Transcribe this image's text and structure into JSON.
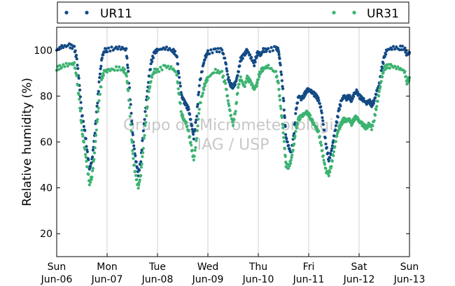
{
  "chart_data": {
    "type": "scatter",
    "ylabel": "Relative humidity (%)",
    "xlim": [
      "2011-06-06 00:00",
      "2011-06-13 00:00"
    ],
    "ylim": [
      10,
      110
    ],
    "yticks": [
      20,
      40,
      60,
      80,
      100
    ],
    "xticks": [
      {
        "day": "Sun",
        "date": "Jun-06"
      },
      {
        "day": "Mon",
        "date": "Jun-07"
      },
      {
        "day": "Tue",
        "date": "Jun-08"
      },
      {
        "day": "Wed",
        "date": "Jun-09"
      },
      {
        "day": "Thu",
        "date": "Jun-10"
      },
      {
        "day": "Fri",
        "date": "Jun-11"
      },
      {
        "day": "Sat",
        "date": "Jun-12"
      },
      {
        "day": "Sun",
        "date": "Jun-13"
      }
    ],
    "grid": "vertical-at-midnight",
    "legend_position": "top",
    "watermark": [
      "Grupo de Micrometeorologia",
      "IAG / USP"
    ],
    "series": [
      {
        "name": "UR11",
        "color": "#134a85",
        "points": [
          [
            0.0,
            100
          ],
          [
            0.1,
            101.5
          ],
          [
            0.25,
            102
          ],
          [
            0.35,
            101
          ],
          [
            0.4,
            96
          ],
          [
            0.45,
            85
          ],
          [
            0.5,
            72
          ],
          [
            0.55,
            66
          ],
          [
            0.6,
            57
          ],
          [
            0.65,
            48
          ],
          [
            0.7,
            52
          ],
          [
            0.75,
            62
          ],
          [
            0.8,
            75
          ],
          [
            0.85,
            88
          ],
          [
            0.9,
            97
          ],
          [
            0.95,
            100
          ],
          [
            1.0,
            100
          ],
          [
            1.15,
            101
          ],
          [
            1.3,
            101
          ],
          [
            1.38,
            100
          ],
          [
            1.42,
            90
          ],
          [
            1.48,
            72
          ],
          [
            1.52,
            60
          ],
          [
            1.57,
            52
          ],
          [
            1.62,
            46
          ],
          [
            1.67,
            52
          ],
          [
            1.72,
            65
          ],
          [
            1.78,
            78
          ],
          [
            1.83,
            88
          ],
          [
            1.88,
            95
          ],
          [
            1.94,
            99
          ],
          [
            2.0,
            100
          ],
          [
            2.15,
            101
          ],
          [
            2.3,
            100
          ],
          [
            2.38,
            98
          ],
          [
            2.42,
            90
          ],
          [
            2.48,
            80
          ],
          [
            2.52,
            78
          ],
          [
            2.57,
            76
          ],
          [
            2.62,
            74
          ],
          [
            2.67,
            68
          ],
          [
            2.72,
            62
          ],
          [
            2.78,
            72
          ],
          [
            2.83,
            85
          ],
          [
            2.9,
            93
          ],
          [
            2.95,
            97
          ],
          [
            3.0,
            99
          ],
          [
            3.15,
            100
          ],
          [
            3.28,
            100
          ],
          [
            3.35,
            95
          ],
          [
            3.4,
            88
          ],
          [
            3.45,
            85
          ],
          [
            3.5,
            84
          ],
          [
            3.55,
            86
          ],
          [
            3.6,
            90
          ],
          [
            3.65,
            96
          ],
          [
            3.72,
            98
          ],
          [
            3.78,
            100
          ],
          [
            3.85,
            97
          ],
          [
            3.92,
            94
          ],
          [
            3.97,
            98
          ],
          [
            4.0,
            99
          ],
          [
            4.05,
            98
          ],
          [
            4.1,
            100
          ],
          [
            4.2,
            100
          ],
          [
            4.35,
            101
          ],
          [
            4.4,
            100
          ],
          [
            4.43,
            95
          ],
          [
            4.48,
            85
          ],
          [
            4.52,
            72
          ],
          [
            4.55,
            62
          ],
          [
            4.6,
            58
          ],
          [
            4.65,
            55
          ],
          [
            4.7,
            62
          ],
          [
            4.75,
            74
          ],
          [
            4.8,
            80
          ],
          [
            4.85,
            79
          ],
          [
            4.9,
            80
          ],
          [
            4.95,
            82
          ],
          [
            5.0,
            83
          ],
          [
            5.05,
            82
          ],
          [
            5.1,
            81
          ],
          [
            5.15,
            80
          ],
          [
            5.2,
            78
          ],
          [
            5.25,
            74
          ],
          [
            5.3,
            66
          ],
          [
            5.35,
            58
          ],
          [
            5.4,
            52
          ],
          [
            5.45,
            56
          ],
          [
            5.5,
            62
          ],
          [
            5.55,
            68
          ],
          [
            5.6,
            74
          ],
          [
            5.65,
            78
          ],
          [
            5.7,
            80
          ],
          [
            5.75,
            79
          ],
          [
            5.8,
            80
          ],
          [
            5.85,
            78
          ],
          [
            5.9,
            81
          ],
          [
            5.95,
            82
          ],
          [
            6.0,
            80
          ],
          [
            6.05,
            79
          ],
          [
            6.1,
            78
          ],
          [
            6.15,
            77
          ],
          [
            6.2,
            78
          ],
          [
            6.25,
            76
          ],
          [
            6.3,
            78
          ],
          [
            6.35,
            82
          ],
          [
            6.4,
            85
          ],
          [
            6.45,
            92
          ],
          [
            6.5,
            97
          ],
          [
            6.55,
            100
          ],
          [
            6.65,
            101
          ],
          [
            6.8,
            101
          ],
          [
            6.9,
            101
          ],
          [
            6.95,
            98
          ],
          [
            7.0,
            99
          ]
        ]
      },
      {
        "name": "UR31",
        "color": "#3cb371",
        "points": [
          [
            0.0,
            92
          ],
          [
            0.1,
            93
          ],
          [
            0.25,
            94
          ],
          [
            0.35,
            94
          ],
          [
            0.4,
            88
          ],
          [
            0.45,
            78
          ],
          [
            0.5,
            65
          ],
          [
            0.55,
            58
          ],
          [
            0.6,
            50
          ],
          [
            0.65,
            42
          ],
          [
            0.7,
            45
          ],
          [
            0.75,
            55
          ],
          [
            0.8,
            68
          ],
          [
            0.85,
            80
          ],
          [
            0.9,
            88
          ],
          [
            0.95,
            91
          ],
          [
            1.0,
            91
          ],
          [
            1.15,
            92
          ],
          [
            1.3,
            92
          ],
          [
            1.38,
            90
          ],
          [
            1.42,
            82
          ],
          [
            1.48,
            64
          ],
          [
            1.52,
            52
          ],
          [
            1.57,
            45
          ],
          [
            1.62,
            40
          ],
          [
            1.67,
            46
          ],
          [
            1.72,
            58
          ],
          [
            1.78,
            72
          ],
          [
            1.83,
            82
          ],
          [
            1.88,
            88
          ],
          [
            1.94,
            91
          ],
          [
            2.0,
            91
          ],
          [
            2.15,
            93
          ],
          [
            2.3,
            92
          ],
          [
            2.38,
            90
          ],
          [
            2.42,
            82
          ],
          [
            2.48,
            72
          ],
          [
            2.52,
            70
          ],
          [
            2.57,
            68
          ],
          [
            2.62,
            64
          ],
          [
            2.67,
            58
          ],
          [
            2.72,
            52
          ],
          [
            2.78,
            62
          ],
          [
            2.83,
            75
          ],
          [
            2.9,
            82
          ],
          [
            2.95,
            86
          ],
          [
            3.0,
            88
          ],
          [
            3.15,
            91
          ],
          [
            3.28,
            90
          ],
          [
            3.35,
            85
          ],
          [
            3.4,
            78
          ],
          [
            3.45,
            72
          ],
          [
            3.5,
            68
          ],
          [
            3.55,
            74
          ],
          [
            3.6,
            84
          ],
          [
            3.65,
            88
          ],
          [
            3.72,
            84
          ],
          [
            3.78,
            88
          ],
          [
            3.85,
            86
          ],
          [
            3.92,
            83
          ],
          [
            3.97,
            85
          ],
          [
            4.0,
            88
          ],
          [
            4.05,
            91
          ],
          [
            4.1,
            92
          ],
          [
            4.2,
            93
          ],
          [
            4.35,
            90
          ],
          [
            4.4,
            85
          ],
          [
            4.43,
            78
          ],
          [
            4.48,
            68
          ],
          [
            4.52,
            58
          ],
          [
            4.55,
            50
          ],
          [
            4.6,
            49
          ],
          [
            4.65,
            52
          ],
          [
            4.7,
            58
          ],
          [
            4.75,
            66
          ],
          [
            4.8,
            70
          ],
          [
            4.85,
            71
          ],
          [
            4.9,
            72
          ],
          [
            4.95,
            73
          ],
          [
            5.0,
            72
          ],
          [
            5.05,
            70
          ],
          [
            5.1,
            68
          ],
          [
            5.15,
            66
          ],
          [
            5.2,
            64
          ],
          [
            5.25,
            58
          ],
          [
            5.3,
            52
          ],
          [
            5.35,
            47
          ],
          [
            5.4,
            46
          ],
          [
            5.45,
            50
          ],
          [
            5.5,
            56
          ],
          [
            5.55,
            62
          ],
          [
            5.6,
            66
          ],
          [
            5.65,
            68
          ],
          [
            5.7,
            70
          ],
          [
            5.75,
            69
          ],
          [
            5.8,
            70
          ],
          [
            5.85,
            68
          ],
          [
            5.9,
            70
          ],
          [
            5.95,
            71
          ],
          [
            6.0,
            69
          ],
          [
            6.05,
            68
          ],
          [
            6.1,
            67
          ],
          [
            6.15,
            66
          ],
          [
            6.2,
            68
          ],
          [
            6.25,
            66
          ],
          [
            6.3,
            70
          ],
          [
            6.35,
            76
          ],
          [
            6.4,
            82
          ],
          [
            6.45,
            88
          ],
          [
            6.5,
            92
          ],
          [
            6.55,
            93
          ],
          [
            6.65,
            93
          ],
          [
            6.8,
            92
          ],
          [
            6.9,
            91
          ],
          [
            6.95,
            86
          ],
          [
            7.0,
            88
          ]
        ]
      }
    ]
  }
}
